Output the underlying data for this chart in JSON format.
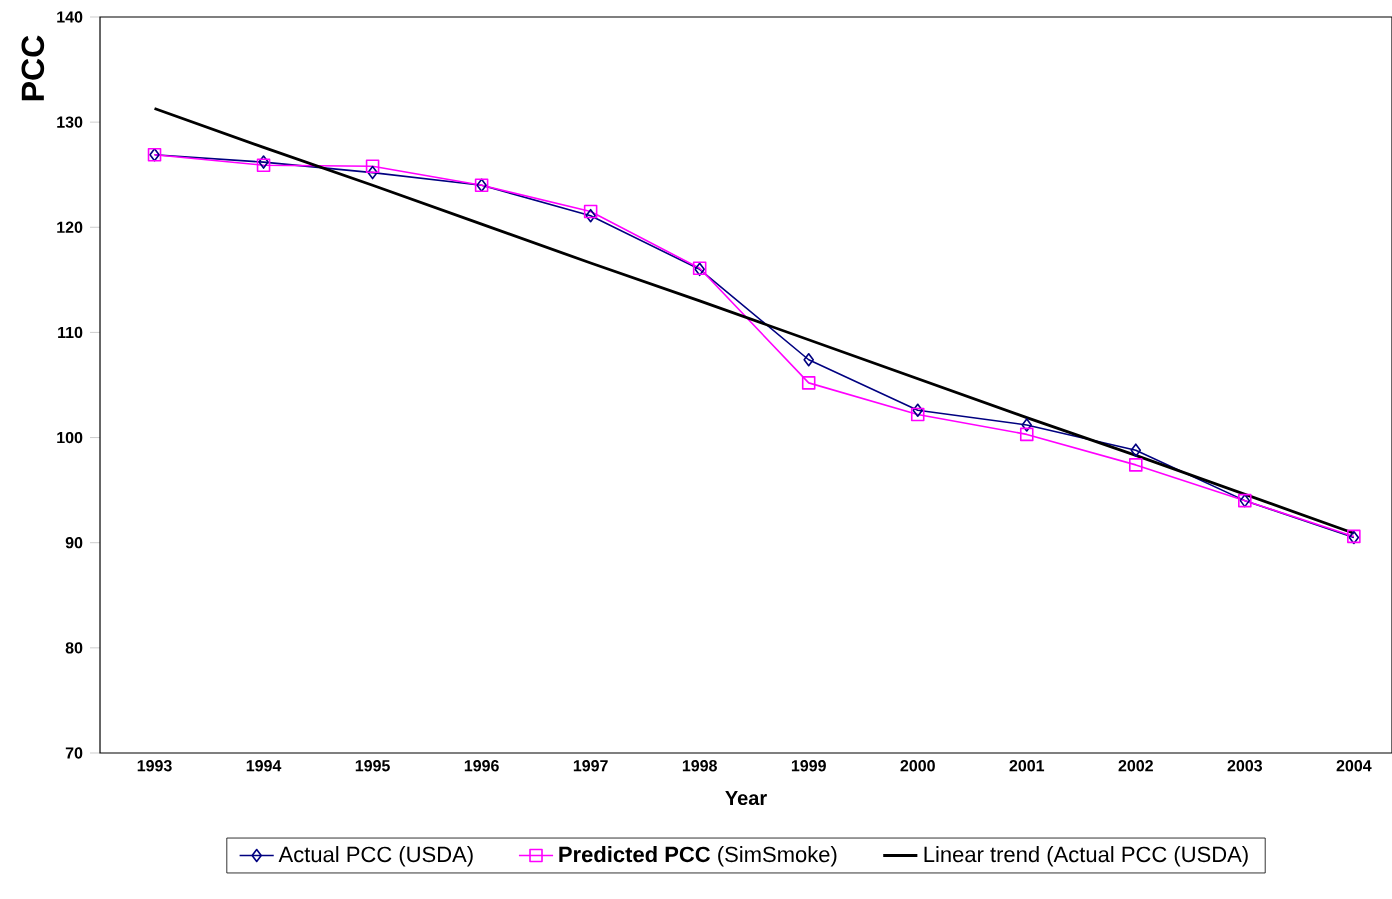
{
  "chart_data": {
    "type": "line",
    "xlabel": "Year",
    "ylabel": "PCC",
    "categories": [
      "1993",
      "1994",
      "1995",
      "1996",
      "1997",
      "1998",
      "1999",
      "2000",
      "2001",
      "2002",
      "2003",
      "2004"
    ],
    "series": [
      {
        "name": "Actual PCC (USDA)",
        "color": "#000080",
        "marker": "diamond",
        "values": [
          126.9,
          126.2,
          125.2,
          124.0,
          121.1,
          116.0,
          107.4,
          102.6,
          101.2,
          98.8,
          94.0,
          90.5
        ]
      },
      {
        "name": "**Predicted PCC** (SimSmoke)",
        "color": "#ff00ff",
        "marker": "square",
        "values": [
          126.9,
          125.9,
          125.8,
          124.0,
          121.5,
          116.1,
          105.2,
          102.2,
          100.3,
          97.4,
          94.0,
          90.6
        ]
      },
      {
        "name": "Linear trend (Actual PCC (USDA)",
        "type": "line",
        "color": "#000000",
        "marker": "none",
        "values": [
          131.3,
          127.6,
          124.0,
          120.3,
          116.6,
          113.0,
          109.3,
          105.6,
          101.9,
          98.3,
          94.6,
          90.9
        ]
      }
    ],
    "ylim": [
      70,
      140
    ],
    "yticks": [
      70,
      80,
      90,
      100,
      110,
      120,
      130,
      140
    ],
    "grid": false,
    "legend": "bottom"
  }
}
